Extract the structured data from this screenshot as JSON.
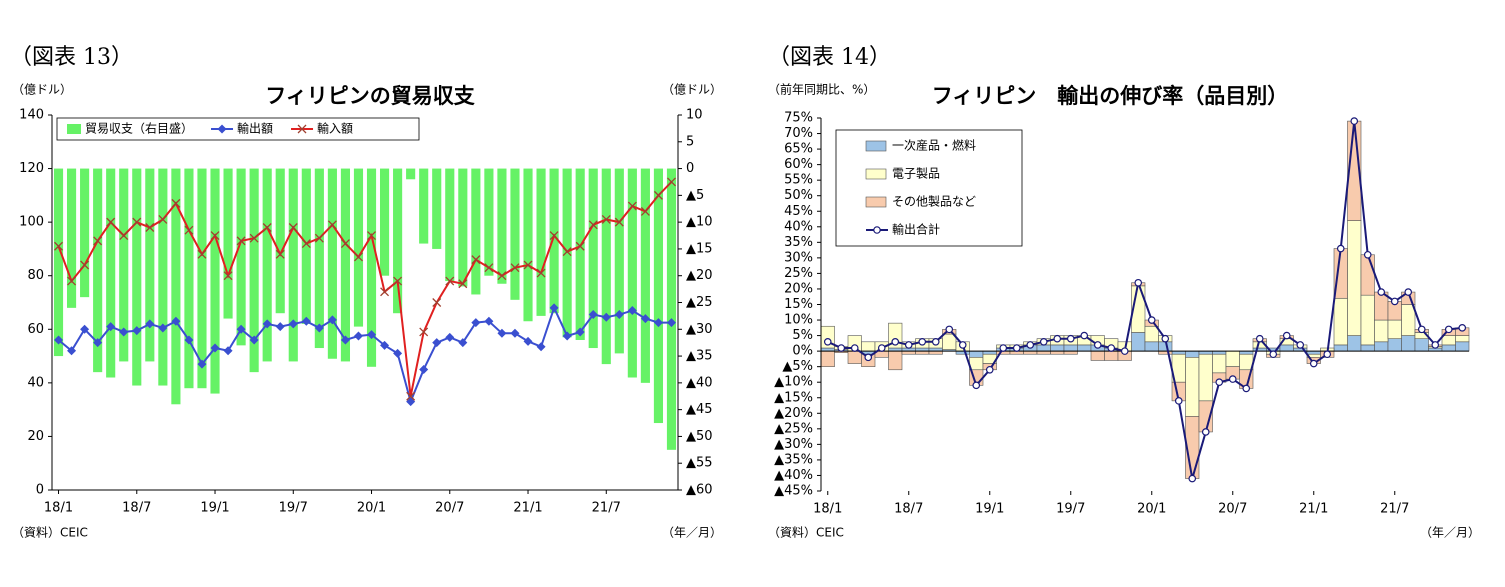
{
  "chart_data": [
    {
      "type": "combo",
      "figure_label": "（図表 13）",
      "title": "フィリピンの貿易収支",
      "y_unit": "（億ドル）",
      "y2_unit": "（億ドル）",
      "x_unit": "（年／月）",
      "source": "（資料）CEIC",
      "legend": "upper left",
      "categories": [
        "18/1",
        null,
        null,
        null,
        null,
        null,
        "18/7",
        null,
        null,
        null,
        null,
        null,
        "19/1",
        null,
        null,
        null,
        null,
        null,
        "19/7",
        null,
        null,
        null,
        null,
        null,
        "20/1",
        null,
        null,
        null,
        null,
        null,
        "20/7",
        null,
        null,
        null,
        null,
        null,
        "21/1",
        null,
        null,
        null,
        null,
        null,
        "21/7",
        null,
        null,
        null,
        null,
        null
      ],
      "ylim": [
        0,
        140
      ],
      "yticks": [
        0,
        20,
        40,
        60,
        80,
        100,
        120,
        140
      ],
      "y2lim": [
        -60,
        10
      ],
      "y2ticks": [
        10,
        5,
        0,
        {
          "value": -5,
          "label": "▲5"
        },
        {
          "value": -10,
          "label": "▲10"
        },
        {
          "value": -15,
          "label": "▲15"
        },
        {
          "value": -20,
          "label": "▲20"
        },
        {
          "value": -25,
          "label": "▲25"
        },
        {
          "value": -30,
          "label": "▲30"
        },
        {
          "value": -35,
          "label": "▲35"
        },
        {
          "value": -40,
          "label": "▲40"
        },
        {
          "value": -45,
          "label": "▲45"
        },
        {
          "value": -50,
          "label": "▲50"
        },
        {
          "value": -55,
          "label": "▲55"
        },
        {
          "value": -60,
          "label": "▲60"
        }
      ],
      "series": [
        {
          "name": "貿易収支（右目盛）",
          "type": "bar",
          "axis": "y2",
          "color": "#66f266",
          "values": [
            -35,
            -26,
            -24,
            -38,
            -39,
            -36,
            -40.5,
            -36,
            -40.5,
            -44,
            -41,
            -41,
            -42,
            -28,
            -33,
            -38,
            -36,
            -27,
            -36,
            -29,
            -33.5,
            -35.5,
            -36,
            -29.5,
            -37,
            -20,
            -27,
            -2,
            -14,
            -15,
            -21,
            -22,
            -23.5,
            -20,
            -21.5,
            -24.5,
            -28.5,
            -27.5,
            -27,
            -31.5,
            -32,
            -33.5,
            -36.5,
            -34.5,
            -39,
            -40,
            -47.5,
            -52.5
          ]
        },
        {
          "name": "輸出額",
          "type": "line",
          "marker": "diamond",
          "color": "#3a4fd0",
          "values": [
            56,
            52,
            60,
            55,
            61,
            59,
            59.5,
            62,
            60.5,
            63,
            56,
            47,
            53,
            52,
            60,
            56,
            62,
            61,
            62,
            63,
            60.5,
            63.5,
            56,
            57.5,
            58,
            54,
            51,
            33,
            45,
            55,
            57,
            55,
            62.5,
            63,
            58.5,
            58.5,
            55.5,
            53.5,
            68,
            57.5,
            59,
            65.5,
            64.5,
            65.5,
            67,
            64,
            62.5,
            62.5
          ]
        },
        {
          "name": "輸入額",
          "type": "line",
          "marker": "x",
          "color": "#e02020",
          "values": [
            91,
            78,
            84,
            93,
            100,
            95,
            100,
            98,
            101,
            107,
            97,
            88,
            95,
            80,
            93,
            94,
            98,
            88,
            98,
            92,
            94,
            99,
            92,
            87,
            95,
            74,
            78,
            35,
            59,
            70,
            78,
            77,
            86,
            83,
            80,
            83,
            84,
            81,
            95,
            89,
            91,
            99,
            101,
            100,
            106,
            104,
            110,
            115
          ]
        }
      ]
    },
    {
      "type": "stacked_bar",
      "figure_label": "（図表 14）",
      "title": "フィリピン　輸出の伸び率（品目別）",
      "y_unit": "（前年同期比、%）",
      "x_unit": "（年／月）",
      "source": "（資料）CEIC",
      "legend": "upper left",
      "categories": [
        "18/1",
        null,
        null,
        null,
        null,
        null,
        "18/7",
        null,
        null,
        null,
        null,
        null,
        "19/1",
        null,
        null,
        null,
        null,
        null,
        "19/7",
        null,
        null,
        null,
        null,
        null,
        "20/1",
        null,
        null,
        null,
        null,
        null,
        "20/7",
        null,
        null,
        null,
        null,
        null,
        "21/1",
        null,
        null,
        null,
        null,
        null,
        "21/7",
        null,
        null,
        null,
        null,
        null
      ],
      "ylim": [
        -45,
        75
      ],
      "yticks": [
        {
          "value": 75,
          "label": "75%"
        },
        {
          "value": 70,
          "label": "70%"
        },
        {
          "value": 65,
          "label": "65%"
        },
        {
          "value": 60,
          "label": "60%"
        },
        {
          "value": 55,
          "label": "55%"
        },
        {
          "value": 50,
          "label": "50%"
        },
        {
          "value": 45,
          "label": "45%"
        },
        {
          "value": 40,
          "label": "40%"
        },
        {
          "value": 35,
          "label": "35%"
        },
        {
          "value": 30,
          "label": "30%"
        },
        {
          "value": 25,
          "label": "25%"
        },
        {
          "value": 20,
          "label": "20%"
        },
        {
          "value": 15,
          "label": "15%"
        },
        {
          "value": 10,
          "label": "10%"
        },
        {
          "value": 5,
          "label": "5%"
        },
        {
          "value": 0,
          "label": "0%"
        },
        {
          "value": -5,
          "label": "▲5%"
        },
        {
          "value": -10,
          "label": "▲10%"
        },
        {
          "value": -15,
          "label": "▲15%"
        },
        {
          "value": -20,
          "label": "▲20%"
        },
        {
          "value": -25,
          "label": "▲25%"
        },
        {
          "value": -30,
          "label": "▲30%"
        },
        {
          "value": -35,
          "label": "▲35%"
        },
        {
          "value": -40,
          "label": "▲40%"
        },
        {
          "value": -45,
          "label": "▲45%"
        }
      ],
      "series": [
        {
          "name": "一次産品・燃料",
          "type": "bar",
          "color": "#9dc3e6",
          "values": [
            1,
            0.5,
            0,
            -1,
            0,
            1,
            1,
            1,
            1,
            0.5,
            -1,
            -2,
            -1,
            1,
            1,
            2,
            2,
            2,
            2,
            2,
            2,
            1,
            0,
            6,
            3,
            3,
            -1,
            -2,
            -1,
            -1,
            0,
            -1,
            1,
            1,
            2,
            1,
            -1,
            0,
            2,
            5,
            2,
            3,
            4,
            5,
            4,
            1,
            2,
            3
          ]
        },
        {
          "name": "電子製品",
          "type": "bar",
          "color": "#ffffcc",
          "values": [
            7,
            1,
            5,
            3,
            3,
            8,
            2,
            3,
            3,
            5,
            3,
            -4,
            -3,
            1,
            1,
            1,
            2,
            3,
            3,
            3,
            3,
            3,
            3,
            15,
            5,
            2,
            -9,
            -19,
            -15,
            -6,
            -5,
            -5,
            2,
            -1,
            2,
            1,
            -1,
            1,
            15,
            37,
            16,
            7,
            6,
            10,
            2,
            0.5,
            3,
            2
          ]
        },
        {
          "name": "その他製品など",
          "type": "bar",
          "color": "#f8cbad",
          "values": [
            -5,
            -0.5,
            -4,
            -4,
            -2,
            -6,
            -1,
            -1,
            -1,
            1.5,
            0,
            -5,
            -2,
            -1,
            -1,
            -1,
            -1,
            -1,
            -1,
            0,
            -3,
            -3,
            -3,
            1,
            2,
            -1,
            -6,
            -20,
            -10,
            -3,
            -4,
            -6,
            1,
            -1,
            1,
            0,
            -2,
            -2,
            16,
            32,
            13,
            9,
            6,
            4,
            1,
            0.5,
            2,
            2.5
          ]
        },
        {
          "name": "輸出合計",
          "type": "line",
          "marker": "circle",
          "color": "#1a1a78",
          "values": [
            3,
            1,
            1,
            -2,
            1,
            3,
            2,
            3,
            3,
            7,
            2,
            -11,
            -6,
            1,
            1,
            2,
            3,
            4,
            4,
            5,
            2,
            1,
            0,
            22,
            10,
            4,
            -16,
            -41,
            -26,
            -10,
            -9,
            -12,
            4,
            -1,
            5,
            2,
            -4,
            -1,
            33,
            74,
            31,
            19,
            16,
            19,
            7,
            2,
            7,
            7.5
          ]
        }
      ]
    }
  ]
}
